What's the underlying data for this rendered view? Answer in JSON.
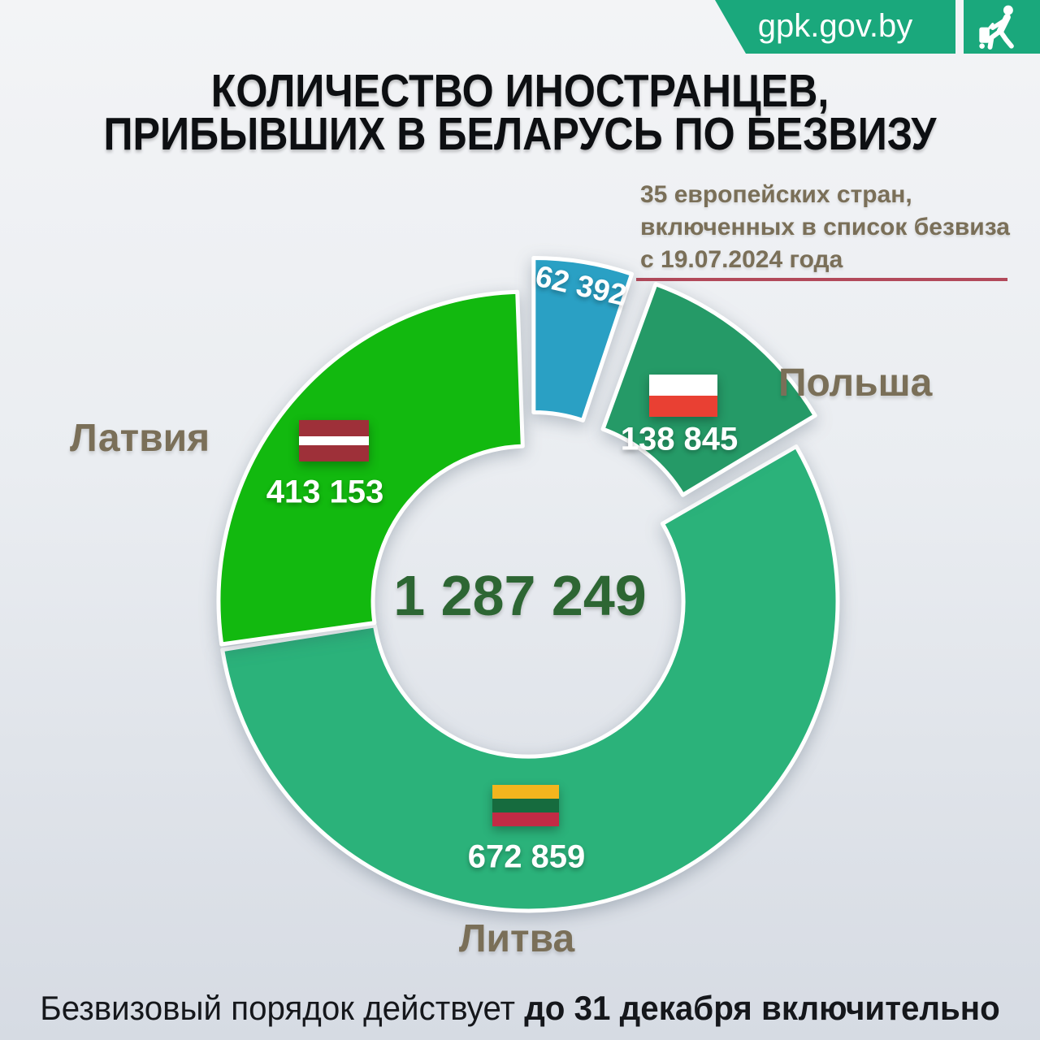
{
  "header": {
    "site_label": "gpk.gov.by",
    "banner_color": "#1aa87c",
    "icon": "traveler-luggage-icon"
  },
  "title": {
    "line1": "КОЛИЧЕСТВО ИНОСТРАНЦЕВ,",
    "line2": "ПРИБЫВШИХ В БЕЛАРУСЬ ПО БЕЗВИЗУ"
  },
  "note": {
    "line1": "35 европейских стран,",
    "line2": "включенных в список безвиза",
    "line3": "с 19.07.2024 года",
    "text_color": "#7a6f58",
    "underline_color": "#b2495a"
  },
  "chart_data": {
    "type": "pie",
    "variant": "donut",
    "direction": "clockwise",
    "center_total_label": "1 287 249",
    "center_total_value": 1287249,
    "center_total_color": "#2d6633",
    "segments": [
      {
        "id": "other",
        "label": "",
        "value": 62392,
        "display_value": "62 392",
        "color": "#2aa0c4",
        "exploded": true,
        "start_deg": 0,
        "end_deg": 18.5
      },
      {
        "id": "poland",
        "label": "Польша",
        "value": 138845,
        "display_value": "138 845",
        "color": "#259a67",
        "exploded": true,
        "start_deg": 20,
        "end_deg": 59
      },
      {
        "id": "lithuania",
        "label": "Литва",
        "value": 672859,
        "display_value": "672 859",
        "color": "#2bb27a",
        "exploded": false,
        "start_deg": 60,
        "end_deg": 261
      },
      {
        "id": "latvia",
        "label": "Латвия",
        "value": 413153,
        "display_value": "413 153",
        "color": "#12b90f",
        "exploded": false,
        "start_deg": 262,
        "end_deg": 358
      }
    ]
  },
  "flags": {
    "latvia": {
      "stripes": [
        "#9e3039",
        "#ffffff",
        "#9e3039"
      ],
      "weights": [
        2,
        1,
        2
      ]
    },
    "poland": {
      "stripes": [
        "#ffffff",
        "#e94033"
      ],
      "weights": [
        1,
        1
      ]
    },
    "lithuania": {
      "stripes": [
        "#f3b51e",
        "#166b3e",
        "#c22b45"
      ],
      "weights": [
        1,
        1,
        1
      ]
    }
  },
  "footer": {
    "normal_part": "Безвизовый порядок действует ",
    "bold_part": "до 31 декабря включительно"
  }
}
